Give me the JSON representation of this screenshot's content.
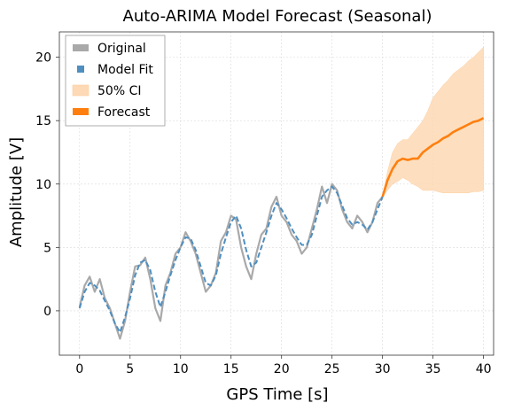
{
  "chart_data": {
    "type": "line",
    "title": "Auto-ARIMA Model Forecast (Seasonal)",
    "xlabel": "GPS Time [s]",
    "ylabel": "Amplitude [V]",
    "xlim": [
      -2,
      41
    ],
    "ylim": [
      -3.5,
      22
    ],
    "xticks": [
      0,
      5,
      10,
      15,
      20,
      25,
      30,
      35,
      40
    ],
    "yticks": [
      0,
      5,
      10,
      15,
      20
    ],
    "grid": true,
    "legend_position": "top-left",
    "legend": [
      {
        "label": "Original",
        "color": "#a9a9a9",
        "kind": "line"
      },
      {
        "label": "Model Fit",
        "color": "#4f8fc0",
        "kind": "dashed"
      },
      {
        "label": "50% CI",
        "color": "#fdd9b5",
        "kind": "band"
      },
      {
        "label": "Forecast",
        "color": "#ff7f0e",
        "kind": "line"
      }
    ],
    "series": [
      {
        "key": "original",
        "color": "#a9a9a9",
        "x": [
          0,
          0.5,
          1,
          1.5,
          2,
          2.5,
          3,
          3.5,
          4,
          4.5,
          5,
          5.5,
          6,
          6.5,
          7,
          7.5,
          8,
          8.5,
          9,
          9.5,
          10,
          10.5,
          11,
          11.5,
          12,
          12.5,
          13,
          13.5,
          14,
          14.5,
          15,
          15.5,
          16,
          16.5,
          17,
          17.5,
          18,
          18.5,
          19,
          19.5,
          20,
          20.5,
          21,
          21.5,
          22,
          22.5,
          23,
          23.5,
          24,
          24.5,
          25,
          25.5,
          26,
          26.5,
          27,
          27.5,
          28,
          28.5,
          29,
          29.5,
          30
        ],
        "y": [
          0.3,
          2.0,
          2.7,
          1.5,
          2.5,
          1.0,
          0.2,
          -1.0,
          -2.2,
          -0.8,
          1.5,
          3.5,
          3.6,
          4.2,
          2.5,
          0.2,
          -0.8,
          2.0,
          3.0,
          4.5,
          5.0,
          6.2,
          5.5,
          4.5,
          3.0,
          1.5,
          2.0,
          3.0,
          5.5,
          6.2,
          7.5,
          7.2,
          5.0,
          3.5,
          2.5,
          4.5,
          6.0,
          6.5,
          8.2,
          9.0,
          7.5,
          7.0,
          6.0,
          5.5,
          4.5,
          5.0,
          6.5,
          8.0,
          9.8,
          8.5,
          10.0,
          9.5,
          8.0,
          7.0,
          6.5,
          7.5,
          7.0,
          6.2,
          7.0,
          8.5,
          9.0
        ]
      },
      {
        "key": "fit",
        "color": "#4f8fc0",
        "x": [
          0,
          0.5,
          1,
          1.5,
          2,
          2.5,
          3,
          3.5,
          4,
          4.5,
          5,
          5.5,
          6,
          6.5,
          7,
          7.5,
          8,
          8.5,
          9,
          9.5,
          10,
          10.5,
          11,
          11.5,
          12,
          12.5,
          13,
          13.5,
          14,
          14.5,
          15,
          15.5,
          16,
          16.5,
          17,
          17.5,
          18,
          18.5,
          19,
          19.5,
          20,
          20.5,
          21,
          21.5,
          22,
          22.5,
          23,
          23.5,
          24,
          24.5,
          25,
          25.5,
          26,
          26.5,
          27,
          27.5,
          28,
          28.5,
          29,
          29.5,
          30
        ],
        "y": [
          0.2,
          1.5,
          2.2,
          2.0,
          1.6,
          0.8,
          0.0,
          -1.0,
          -1.7,
          -0.5,
          1.0,
          2.8,
          3.8,
          4.0,
          3.2,
          1.5,
          0.3,
          1.5,
          2.8,
          4.0,
          5.0,
          5.8,
          5.7,
          4.8,
          3.5,
          2.2,
          2.0,
          2.8,
          4.5,
          5.8,
          7.0,
          7.5,
          6.5,
          4.8,
          3.5,
          3.8,
          5.0,
          6.2,
          7.5,
          8.5,
          8.0,
          7.3,
          6.5,
          5.8,
          5.2,
          5.2,
          6.0,
          7.5,
          9.0,
          9.5,
          9.8,
          9.3,
          8.3,
          7.3,
          6.8,
          7.0,
          6.8,
          6.4,
          7.0,
          8.0,
          9.0
        ]
      },
      {
        "key": "forecast",
        "color": "#ff7f0e",
        "x": [
          30,
          30.5,
          31,
          31.5,
          32,
          32.5,
          33,
          33.5,
          34,
          34.5,
          35,
          35.5,
          36,
          36.5,
          37,
          37.5,
          38,
          38.5,
          39,
          39.5,
          40
        ],
        "y": [
          9.0,
          10.3,
          11.2,
          11.8,
          12.0,
          11.9,
          12.0,
          12.0,
          12.5,
          12.8,
          13.1,
          13.3,
          13.6,
          13.8,
          14.1,
          14.3,
          14.5,
          14.7,
          14.9,
          15.0,
          15.2
        ]
      }
    ],
    "ci_band": {
      "x": [
        30,
        30.5,
        31,
        31.5,
        32,
        32.5,
        33,
        33.5,
        34,
        34.5,
        35,
        35.5,
        36,
        36.5,
        37,
        37.5,
        38,
        38.5,
        39,
        39.5,
        40
      ],
      "lower": [
        9.0,
        9.5,
        10.0,
        10.2,
        10.5,
        10.3,
        10.0,
        9.8,
        9.5,
        9.5,
        9.5,
        9.4,
        9.3,
        9.3,
        9.3,
        9.3,
        9.3,
        9.3,
        9.4,
        9.4,
        9.5
      ],
      "upper": [
        9.0,
        11.0,
        12.5,
        13.2,
        13.5,
        13.5,
        14.0,
        14.5,
        15.0,
        15.8,
        16.8,
        17.3,
        17.8,
        18.2,
        18.7,
        19.0,
        19.3,
        19.7,
        20.0,
        20.4,
        20.8
      ]
    }
  }
}
